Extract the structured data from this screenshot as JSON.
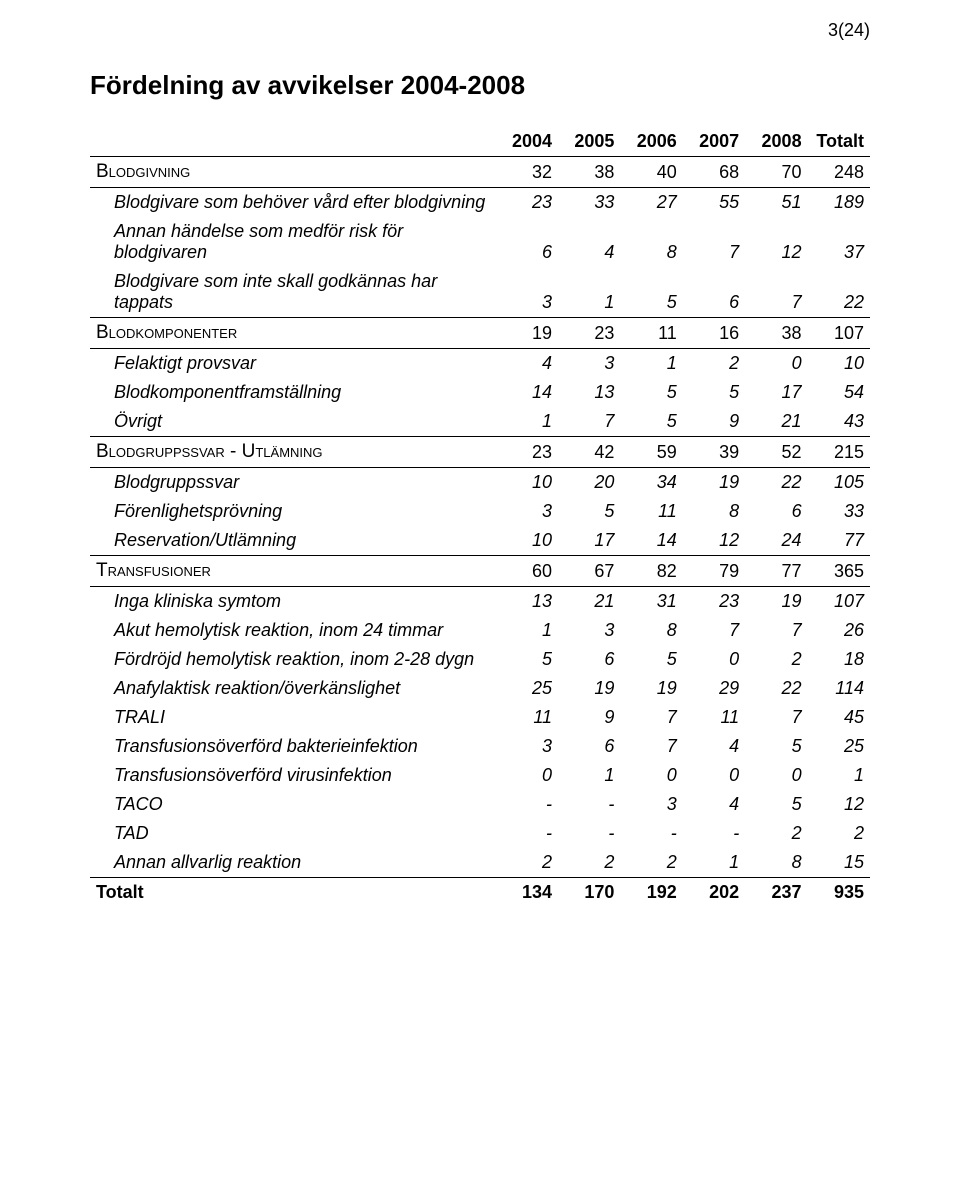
{
  "page_number": "3(24)",
  "title": "Fördelning av avvikelser 2004-2008",
  "columns": [
    "",
    "2004",
    "2005",
    "2006",
    "2007",
    "2008",
    "Totalt"
  ],
  "rows": [
    {
      "type": "section",
      "label": "Blodgivning",
      "cells": [
        "32",
        "38",
        "40",
        "68",
        "70",
        "248"
      ]
    },
    {
      "type": "sub",
      "label": "Blodgivare som behöver vård efter blodgivning",
      "cells": [
        "23",
        "33",
        "27",
        "55",
        "51",
        "189"
      ]
    },
    {
      "type": "sub",
      "label": "Annan händelse som medför risk för blodgivaren",
      "cells": [
        "6",
        "4",
        "8",
        "7",
        "12",
        "37"
      ]
    },
    {
      "type": "sub",
      "label": "Blodgivare som inte skall godkännas har tappats",
      "cells": [
        "3",
        "1",
        "5",
        "6",
        "7",
        "22"
      ]
    },
    {
      "type": "section",
      "label": "Blodkomponenter",
      "cells": [
        "19",
        "23",
        "11",
        "16",
        "38",
        "107"
      ]
    },
    {
      "type": "sub",
      "label": "Felaktigt provsvar",
      "cells": [
        "4",
        "3",
        "1",
        "2",
        "0",
        "10"
      ]
    },
    {
      "type": "sub",
      "label": "Blodkomponentframställning",
      "cells": [
        "14",
        "13",
        "5",
        "5",
        "17",
        "54"
      ]
    },
    {
      "type": "sub",
      "label": "Övrigt",
      "cells": [
        "1",
        "7",
        "5",
        "9",
        "21",
        "43"
      ]
    },
    {
      "type": "section",
      "label": "Blodgruppssvar - Utlämning",
      "cells": [
        "23",
        "42",
        "59",
        "39",
        "52",
        "215"
      ]
    },
    {
      "type": "sub",
      "label": "Blodgruppssvar",
      "cells": [
        "10",
        "20",
        "34",
        "19",
        "22",
        "105"
      ]
    },
    {
      "type": "sub",
      "label": "Förenlighetsprövning",
      "cells": [
        "3",
        "5",
        "11",
        "8",
        "6",
        "33"
      ]
    },
    {
      "type": "sub",
      "label": "Reservation/Utlämning",
      "cells": [
        "10",
        "17",
        "14",
        "12",
        "24",
        "77"
      ]
    },
    {
      "type": "section",
      "label": "Transfusioner",
      "cells": [
        "60",
        "67",
        "82",
        "79",
        "77",
        "365"
      ]
    },
    {
      "type": "sub",
      "label": "Inga kliniska symtom",
      "cells": [
        "13",
        "21",
        "31",
        "23",
        "19",
        "107"
      ]
    },
    {
      "type": "sub",
      "label": "Akut hemolytisk reaktion, inom 24 timmar",
      "cells": [
        "1",
        "3",
        "8",
        "7",
        "7",
        "26"
      ]
    },
    {
      "type": "sub",
      "label": "Fördröjd hemolytisk reaktion, inom 2-28 dygn",
      "cells": [
        "5",
        "6",
        "5",
        "0",
        "2",
        "18"
      ]
    },
    {
      "type": "sub",
      "label": "Anafylaktisk reaktion/överkänslighet",
      "cells": [
        "25",
        "19",
        "19",
        "29",
        "22",
        "114"
      ]
    },
    {
      "type": "sub",
      "label": "TRALI",
      "cells": [
        "11",
        "9",
        "7",
        "11",
        "7",
        "45"
      ]
    },
    {
      "type": "sub",
      "label": "Transfusionsöverförd bakterieinfektion",
      "cells": [
        "3",
        "6",
        "7",
        "4",
        "5",
        "25"
      ]
    },
    {
      "type": "sub",
      "label": "Transfusionsöverförd virusinfektion",
      "cells": [
        "0",
        "1",
        "0",
        "0",
        "0",
        "1"
      ]
    },
    {
      "type": "sub",
      "label": "TACO",
      "cells": [
        "-",
        "-",
        "3",
        "4",
        "5",
        "12"
      ]
    },
    {
      "type": "sub",
      "label": "TAD",
      "cells": [
        "-",
        "-",
        "-",
        "-",
        "2",
        "2"
      ]
    },
    {
      "type": "sub",
      "label": "Annan allvarlig reaktion",
      "cells": [
        "2",
        "2",
        "2",
        "1",
        "8",
        "15"
      ]
    },
    {
      "type": "total",
      "label": "Totalt",
      "cells": [
        "134",
        "170",
        "192",
        "202",
        "237",
        "935"
      ]
    }
  ]
}
